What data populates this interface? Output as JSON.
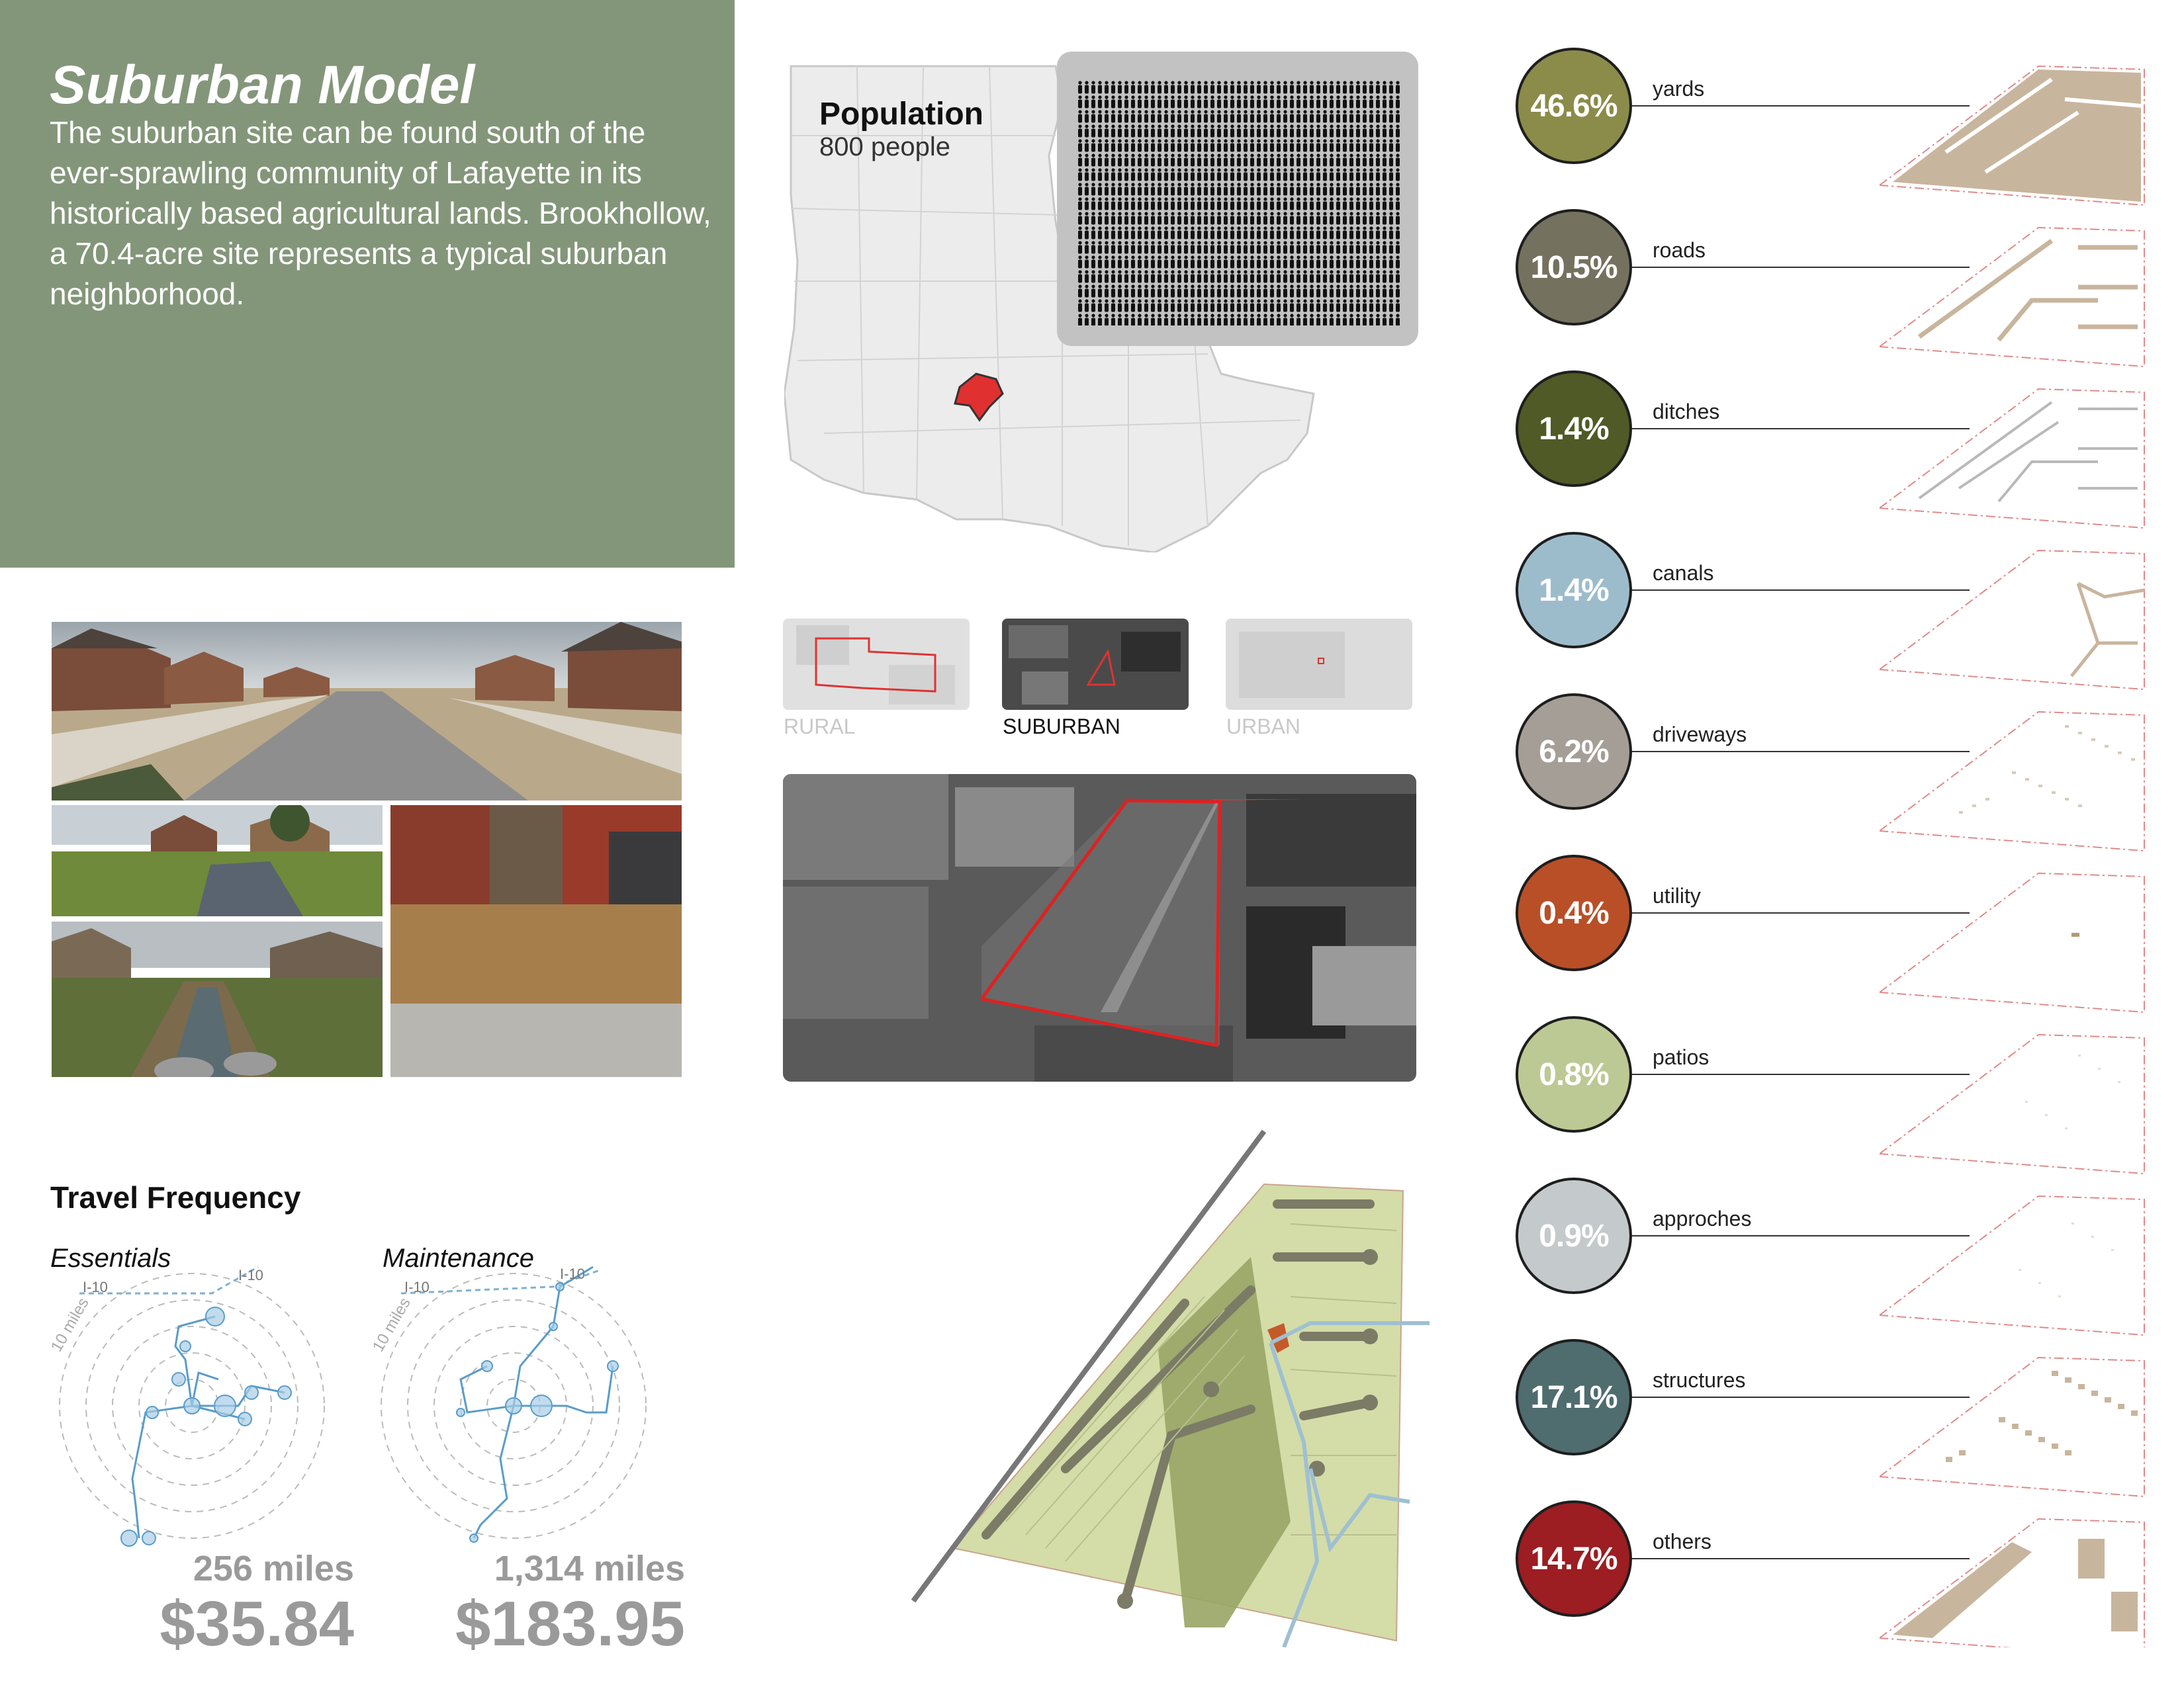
{
  "header": {
    "title": "Suburban Model",
    "description": "The suburban site can be found south of the ever-sprawling community of Lafayette in its historically based agricultural lands. Brookhollow, a 70.4-acre site represents a typical suburban neighborhood."
  },
  "population": {
    "title": "Population",
    "subtitle": "800 people"
  },
  "site_types": [
    {
      "label": "RURAL",
      "active": false
    },
    {
      "label": "SUBURBAN",
      "active": true
    },
    {
      "label": "URBAN",
      "active": false
    }
  ],
  "travel": {
    "title": "Travel Frequency",
    "essentials": {
      "label": "Essentials",
      "miles": "256 miles",
      "cost": "$35.84",
      "highway": "I-10",
      "radius": "10 miles"
    },
    "maintenance": {
      "label": "Maintenance",
      "miles": "1,314 miles",
      "cost": "$183.95",
      "highway": "I-10",
      "radius": "10 miles"
    }
  },
  "categories": [
    {
      "percent": "46.6%",
      "label": "yards",
      "color": "#8b8b4a"
    },
    {
      "percent": "10.5%",
      "label": "roads",
      "color": "#75715f"
    },
    {
      "percent": "1.4%",
      "label": "ditches",
      "color": "#4f5a26"
    },
    {
      "percent": "1.4%",
      "label": "canals",
      "color": "#9dbccb"
    },
    {
      "percent": "6.2%",
      "label": "driveways",
      "color": "#a59e97"
    },
    {
      "percent": "0.4%",
      "label": "utility",
      "color": "#b94f27"
    },
    {
      "percent": "0.8%",
      "label": "patios",
      "color": "#bcc994"
    },
    {
      "percent": "0.9%",
      "label": "approches",
      "color": "#c4c9cc"
    },
    {
      "percent": "17.1%",
      "label": "structures",
      "color": "#4f6c6f"
    },
    {
      "percent": "14.7%",
      "label": "others",
      "color": "#9c1d22"
    }
  ]
}
